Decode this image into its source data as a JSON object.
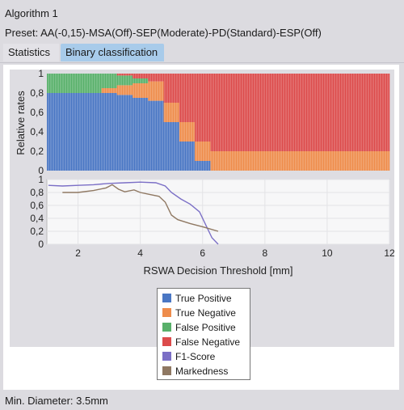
{
  "window": {
    "title": "Algorithm 1",
    "preset": "Preset: AA(-0,15)-MSA(Off)-SEP(Moderate)-PD(Standard)-ESP(Off)"
  },
  "tabs": [
    {
      "label": "Statistics",
      "active": false
    },
    {
      "label": "Binary classification",
      "active": true
    }
  ],
  "footer": {
    "min_diameter": "Min. Diameter: 3.5mm"
  },
  "colors": {
    "true_positive": "#4a77c4",
    "true_negative": "#ee8c4b",
    "false_positive": "#58b06a",
    "false_negative": "#dc4b4b",
    "f1": "#7b6fc6",
    "markedness": "#8f7862"
  },
  "legend": [
    {
      "label": "True Positive",
      "color": "#4a77c4",
      "icon": "blue-square"
    },
    {
      "label": "True Negative",
      "color": "#ee8c4b",
      "icon": "orange-square"
    },
    {
      "label": "False Positive",
      "color": "#58b06a",
      "icon": "green-square"
    },
    {
      "label": "False Negative",
      "color": "#dc4b4b",
      "icon": "red-square"
    },
    {
      "label": "F1-Score",
      "color": "#7b6fc6",
      "icon": "purple-square"
    },
    {
      "label": "Markedness",
      "color": "#8f7862",
      "icon": "brown-square"
    }
  ],
  "chart_data": [
    {
      "type": "bar",
      "stacked": true,
      "ylabel": "Relative rates",
      "xlabel": "RSWA Decision Threshold [mm]",
      "xlim": [
        1,
        12
      ],
      "ylim": [
        0,
        1
      ],
      "xticks": [
        "2",
        "4",
        "6",
        "8",
        "10",
        "12"
      ],
      "yticks": [
        "0",
        "0,2",
        "0,4",
        "0,6",
        "0,8",
        "1"
      ],
      "grid": false,
      "x": [
        1.5,
        2.0,
        2.5,
        3.0,
        3.5,
        4.0,
        4.5,
        5.0,
        5.5,
        6.0,
        6.5,
        7.0,
        8.0,
        9.0,
        10.0,
        11.0,
        12.0
      ],
      "series": [
        {
          "name": "True Positive",
          "values": [
            0.8,
            0.8,
            0.8,
            0.8,
            0.78,
            0.75,
            0.72,
            0.5,
            0.3,
            0.1,
            0.0,
            0.0,
            0.0,
            0.0,
            0.0,
            0.0,
            0.0
          ]
        },
        {
          "name": "True Negative",
          "values": [
            0.0,
            0.0,
            0.0,
            0.05,
            0.1,
            0.15,
            0.2,
            0.2,
            0.2,
            0.2,
            0.2,
            0.2,
            0.2,
            0.2,
            0.2,
            0.2,
            0.2
          ]
        },
        {
          "name": "False Positive",
          "values": [
            0.2,
            0.2,
            0.2,
            0.15,
            0.1,
            0.05,
            0.0,
            0.0,
            0.0,
            0.0,
            0.0,
            0.0,
            0.0,
            0.0,
            0.0,
            0.0,
            0.0
          ]
        },
        {
          "name": "False Negative",
          "values": [
            0.0,
            0.0,
            0.0,
            0.0,
            0.02,
            0.05,
            0.08,
            0.3,
            0.5,
            0.7,
            0.8,
            0.8,
            0.8,
            0.8,
            0.8,
            0.8,
            0.8
          ]
        }
      ]
    },
    {
      "type": "line",
      "xlim": [
        1,
        12
      ],
      "ylim": [
        0,
        1
      ],
      "xticks": [
        "2",
        "4",
        "6",
        "8",
        "10",
        "12"
      ],
      "yticks": [
        "0",
        "0,2",
        "0,4",
        "0,6",
        "0,8",
        "1"
      ],
      "grid": true,
      "series": [
        {
          "name": "F1-Score",
          "x": [
            1.05,
            1.5,
            2.0,
            2.5,
            3.0,
            3.5,
            4.0,
            4.5,
            4.8,
            5.0,
            5.3,
            5.6,
            5.9,
            6.1,
            6.3,
            6.5
          ],
          "y": [
            0.91,
            0.9,
            0.91,
            0.92,
            0.94,
            0.95,
            0.96,
            0.95,
            0.9,
            0.8,
            0.7,
            0.62,
            0.5,
            0.3,
            0.1,
            0.0
          ]
        },
        {
          "name": "Markedness",
          "x": [
            1.5,
            2.0,
            2.5,
            2.9,
            3.1,
            3.3,
            3.5,
            3.8,
            4.0,
            4.3,
            4.6,
            4.8,
            5.0,
            5.2,
            5.6,
            6.0,
            6.5
          ],
          "y": [
            0.8,
            0.8,
            0.83,
            0.87,
            0.92,
            0.85,
            0.81,
            0.84,
            0.8,
            0.77,
            0.74,
            0.65,
            0.45,
            0.38,
            0.32,
            0.27,
            0.2
          ]
        }
      ]
    }
  ]
}
